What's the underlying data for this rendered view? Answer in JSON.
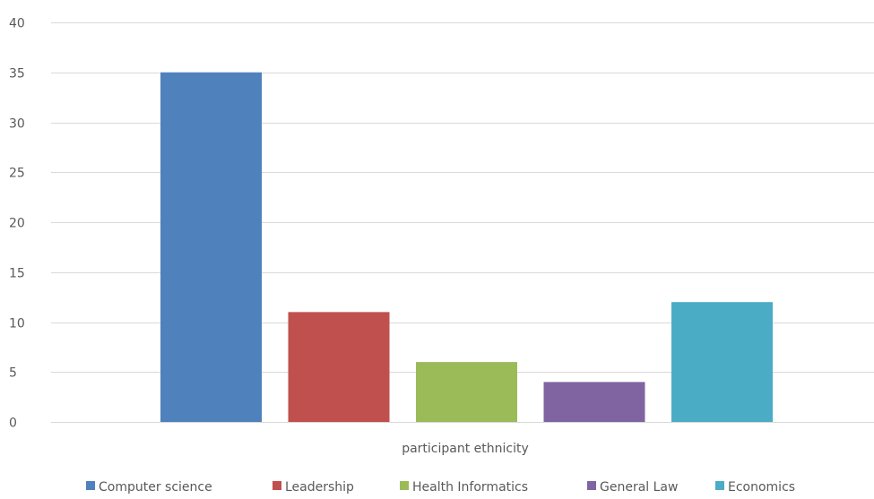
{
  "chart_data": {
    "type": "bar",
    "title": "",
    "xlabel": "participant ethnicity",
    "ylabel": "",
    "ylim": [
      0,
      40
    ],
    "yticks": [
      0,
      5,
      10,
      15,
      20,
      25,
      30,
      35,
      40
    ],
    "grid": true,
    "legend_position": "bottom",
    "categories": [
      "participant ethnicity"
    ],
    "series": [
      {
        "name": "Computer science",
        "values": [
          35
        ],
        "color": "#4f81bd"
      },
      {
        "name": "Leadership",
        "values": [
          11
        ],
        "color": "#c0504d"
      },
      {
        "name": "Health Informatics",
        "values": [
          6
        ],
        "color": "#9bbb59"
      },
      {
        "name": "General Law",
        "values": [
          4
        ],
        "color": "#8064a2"
      },
      {
        "name": "Economics",
        "values": [
          12
        ],
        "color": "#4bacc6"
      }
    ]
  }
}
